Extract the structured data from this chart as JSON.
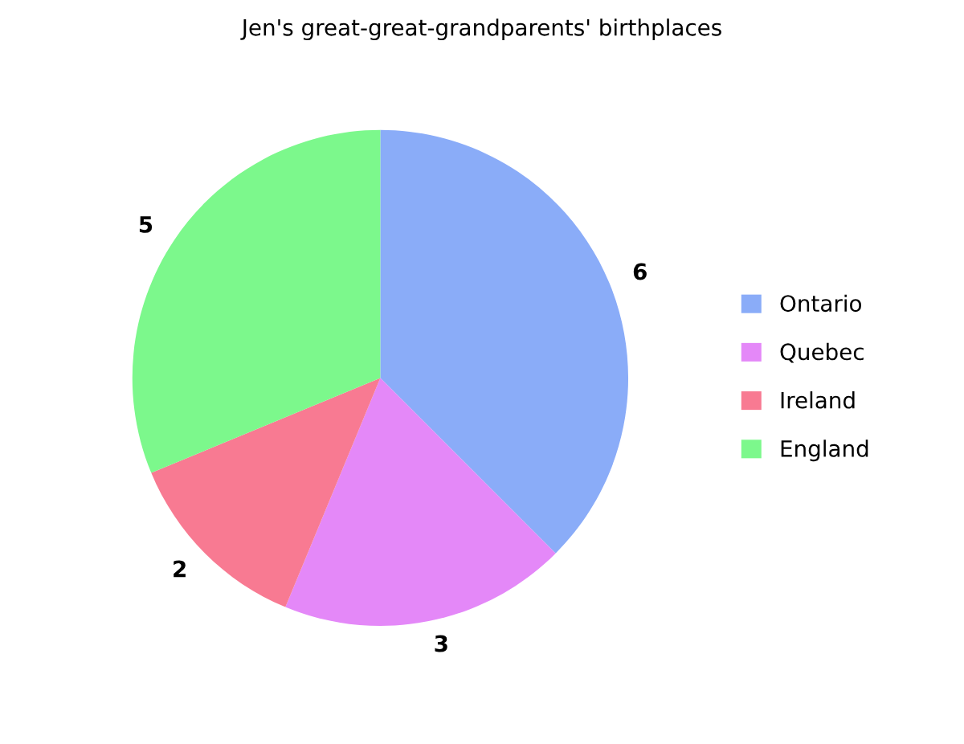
{
  "chart_data": {
    "type": "pie",
    "title": "Jen's great-great-grandparents' birthplaces",
    "categories": [
      "Ontario",
      "Quebec",
      "Ireland",
      "England"
    ],
    "values": [
      6,
      3,
      2,
      5
    ],
    "colors": [
      "#8aacf8",
      "#e488f8",
      "#f87a92",
      "#7cf88c"
    ],
    "data_labels": true,
    "legend": "right"
  }
}
